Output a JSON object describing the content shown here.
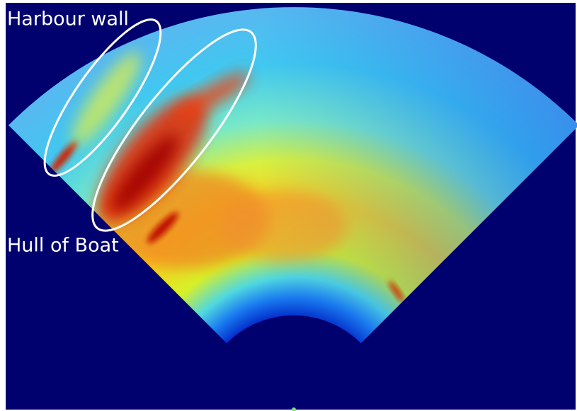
{
  "annotations": {
    "harbour_wall": "Harbour wall",
    "hull_of_boat": "Hull of Boat"
  }
}
